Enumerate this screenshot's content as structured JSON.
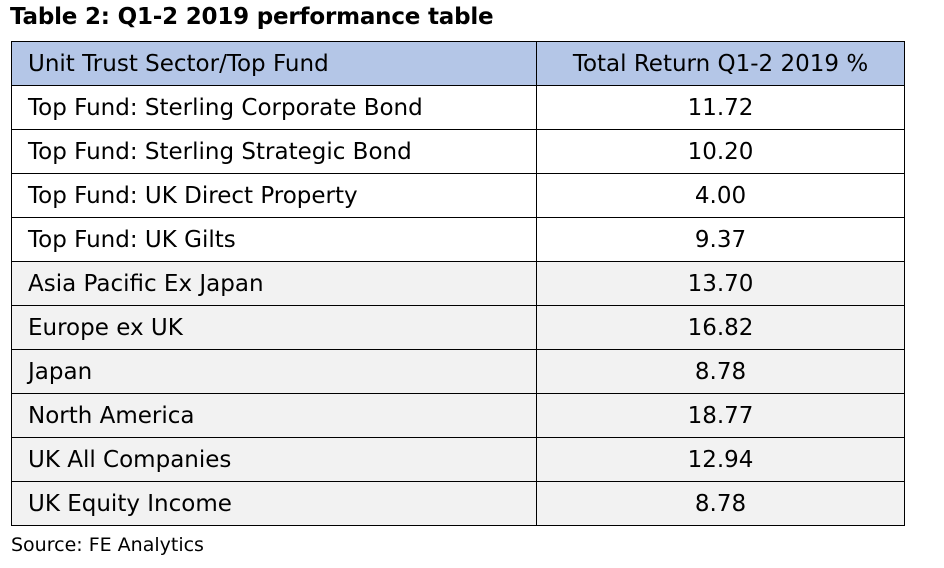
{
  "caption": "Table 2: Q1-2 2019 performance table",
  "colors": {
    "header_bg": "#b4c6e7",
    "shaded_row_bg": "#f2f2f2",
    "border": "#000000"
  },
  "table": {
    "headers": [
      "Unit Trust Sector/Top Fund",
      "Total Return Q1-2 2019 %"
    ],
    "rows": [
      {
        "sector": "Top Fund: Sterling Corporate Bond",
        "return": "11.72",
        "shaded": false
      },
      {
        "sector": "Top Fund: Sterling Strategic Bond",
        "return": "10.20",
        "shaded": false
      },
      {
        "sector": "Top Fund: UK Direct Property",
        "return": "4.00",
        "shaded": false
      },
      {
        "sector": "Top Fund: UK Gilts",
        "return": "9.37",
        "shaded": false
      },
      {
        "sector": "Asia Pacific Ex Japan",
        "return": "13.70",
        "shaded": true
      },
      {
        "sector": "Europe ex UK",
        "return": "16.82",
        "shaded": true
      },
      {
        "sector": "Japan",
        "return": "8.78",
        "shaded": true
      },
      {
        "sector": "North America",
        "return": "18.77",
        "shaded": true
      },
      {
        "sector": "UK All Companies",
        "return": "12.94",
        "shaded": true
      },
      {
        "sector": "UK Equity Income",
        "return": "8.78",
        "shaded": true
      }
    ]
  },
  "source": "Source: FE Analytics"
}
